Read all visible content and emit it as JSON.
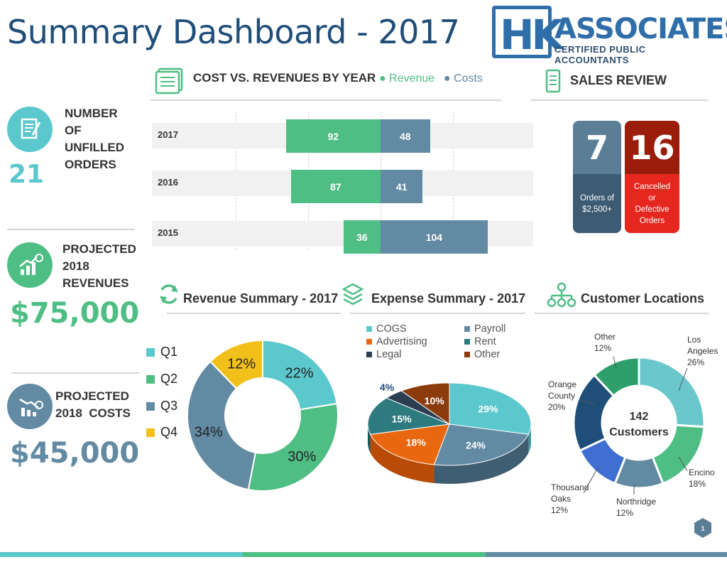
{
  "title": "Summary Dashboard - 2017",
  "logo": {
    "letters": "HK",
    "name": "ASSOCIATES",
    "tagline": "CERTIFIED PUBLIC ACCOUNTANTS"
  },
  "kpis": {
    "unfilled": {
      "label_lines": [
        "NUMBER",
        "OF",
        "UNFILLED",
        "ORDERS"
      ],
      "value": "21"
    },
    "revenues": {
      "label_lines": [
        "PROJECTED",
        "2018",
        "REVENUES"
      ],
      "value": "$75,000"
    },
    "costs": {
      "label_lines": [
        "PROJECTED",
        "2018  COSTS"
      ],
      "value": "$45,000"
    }
  },
  "colors": {
    "teal": "#5bc8cd",
    "green": "#4fbe85",
    "slate": "#628aa3",
    "yellow": "#f2c01b",
    "title_blue": "#1f4e79",
    "card_blue_top": "#5b7e97",
    "card_blue_bottom": "#3d5c74",
    "card_red_top": "#9a1d0b",
    "card_red_bottom": "#e5271f"
  },
  "sections": {
    "cost_vs_rev": {
      "title": "COST VS. REVENUES BY YEAR",
      "legend_revenue": "Revenue",
      "legend_costs": "Costs"
    },
    "sales_review": {
      "title": "SALES REVIEW"
    },
    "revenue_summary": {
      "title": "Revenue Summary - 2017"
    },
    "expense_summary": {
      "title": "Expense Summary - 2017"
    },
    "customer_locations": {
      "title": "Customer Locations"
    }
  },
  "sales_cards": [
    {
      "value": "7",
      "label_lines": [
        "Orders of",
        "$2,500+"
      ]
    },
    {
      "value": "16",
      "label_lines": [
        "Cancelled",
        "or",
        "Defective",
        "Orders"
      ]
    }
  ],
  "chart_data": [
    {
      "type": "bar",
      "orientation": "horizontal-diverging",
      "title": "COST VS. REVENUES BY YEAR",
      "categories": [
        "2017",
        "2016",
        "2015"
      ],
      "series": [
        {
          "name": "Revenue",
          "values": [
            92,
            87,
            36
          ]
        },
        {
          "name": "Costs",
          "values": [
            48,
            41,
            104
          ]
        }
      ]
    },
    {
      "type": "pie",
      "variant": "donut",
      "title": "Revenue Summary - 2017",
      "labels": [
        "Q1",
        "Q2",
        "Q3",
        "Q4"
      ],
      "values": [
        22,
        30,
        34,
        12
      ],
      "value_labels": [
        "22%",
        "30%",
        "34%",
        "12%"
      ]
    },
    {
      "type": "pie",
      "variant": "3d",
      "title": "Expense Summary - 2017",
      "legend": [
        "COGS",
        "Payroll",
        "Advertising",
        "Rent",
        "Legal",
        "Other"
      ],
      "labels": [
        "COGS",
        "Payroll",
        "Advertising",
        "Rent",
        "Legal",
        "Other"
      ],
      "values": [
        29,
        24,
        18,
        15,
        4,
        10
      ],
      "value_labels": [
        "29%",
        "24%",
        "18%",
        "15%",
        "4%",
        "10%"
      ]
    },
    {
      "type": "pie",
      "variant": "donut",
      "title": "Customer Locations",
      "center_label": [
        "142",
        "Customers"
      ],
      "labels": [
        "Los Angeles",
        "Encino",
        "Northridge",
        "Thousand Oaks",
        "Orange County",
        "Other"
      ],
      "values": [
        26,
        18,
        12,
        12,
        20,
        12
      ],
      "label_texts": [
        [
          "Los",
          "Angeles",
          "26%"
        ],
        [
          "Encino",
          "18%"
        ],
        [
          "Northridge",
          "12%"
        ],
        [
          "Thousand",
          "Oaks",
          "12%"
        ],
        [
          "Orange",
          "County",
          "20%"
        ],
        [
          "Other",
          "12%"
        ]
      ]
    }
  ],
  "page_number": "1"
}
